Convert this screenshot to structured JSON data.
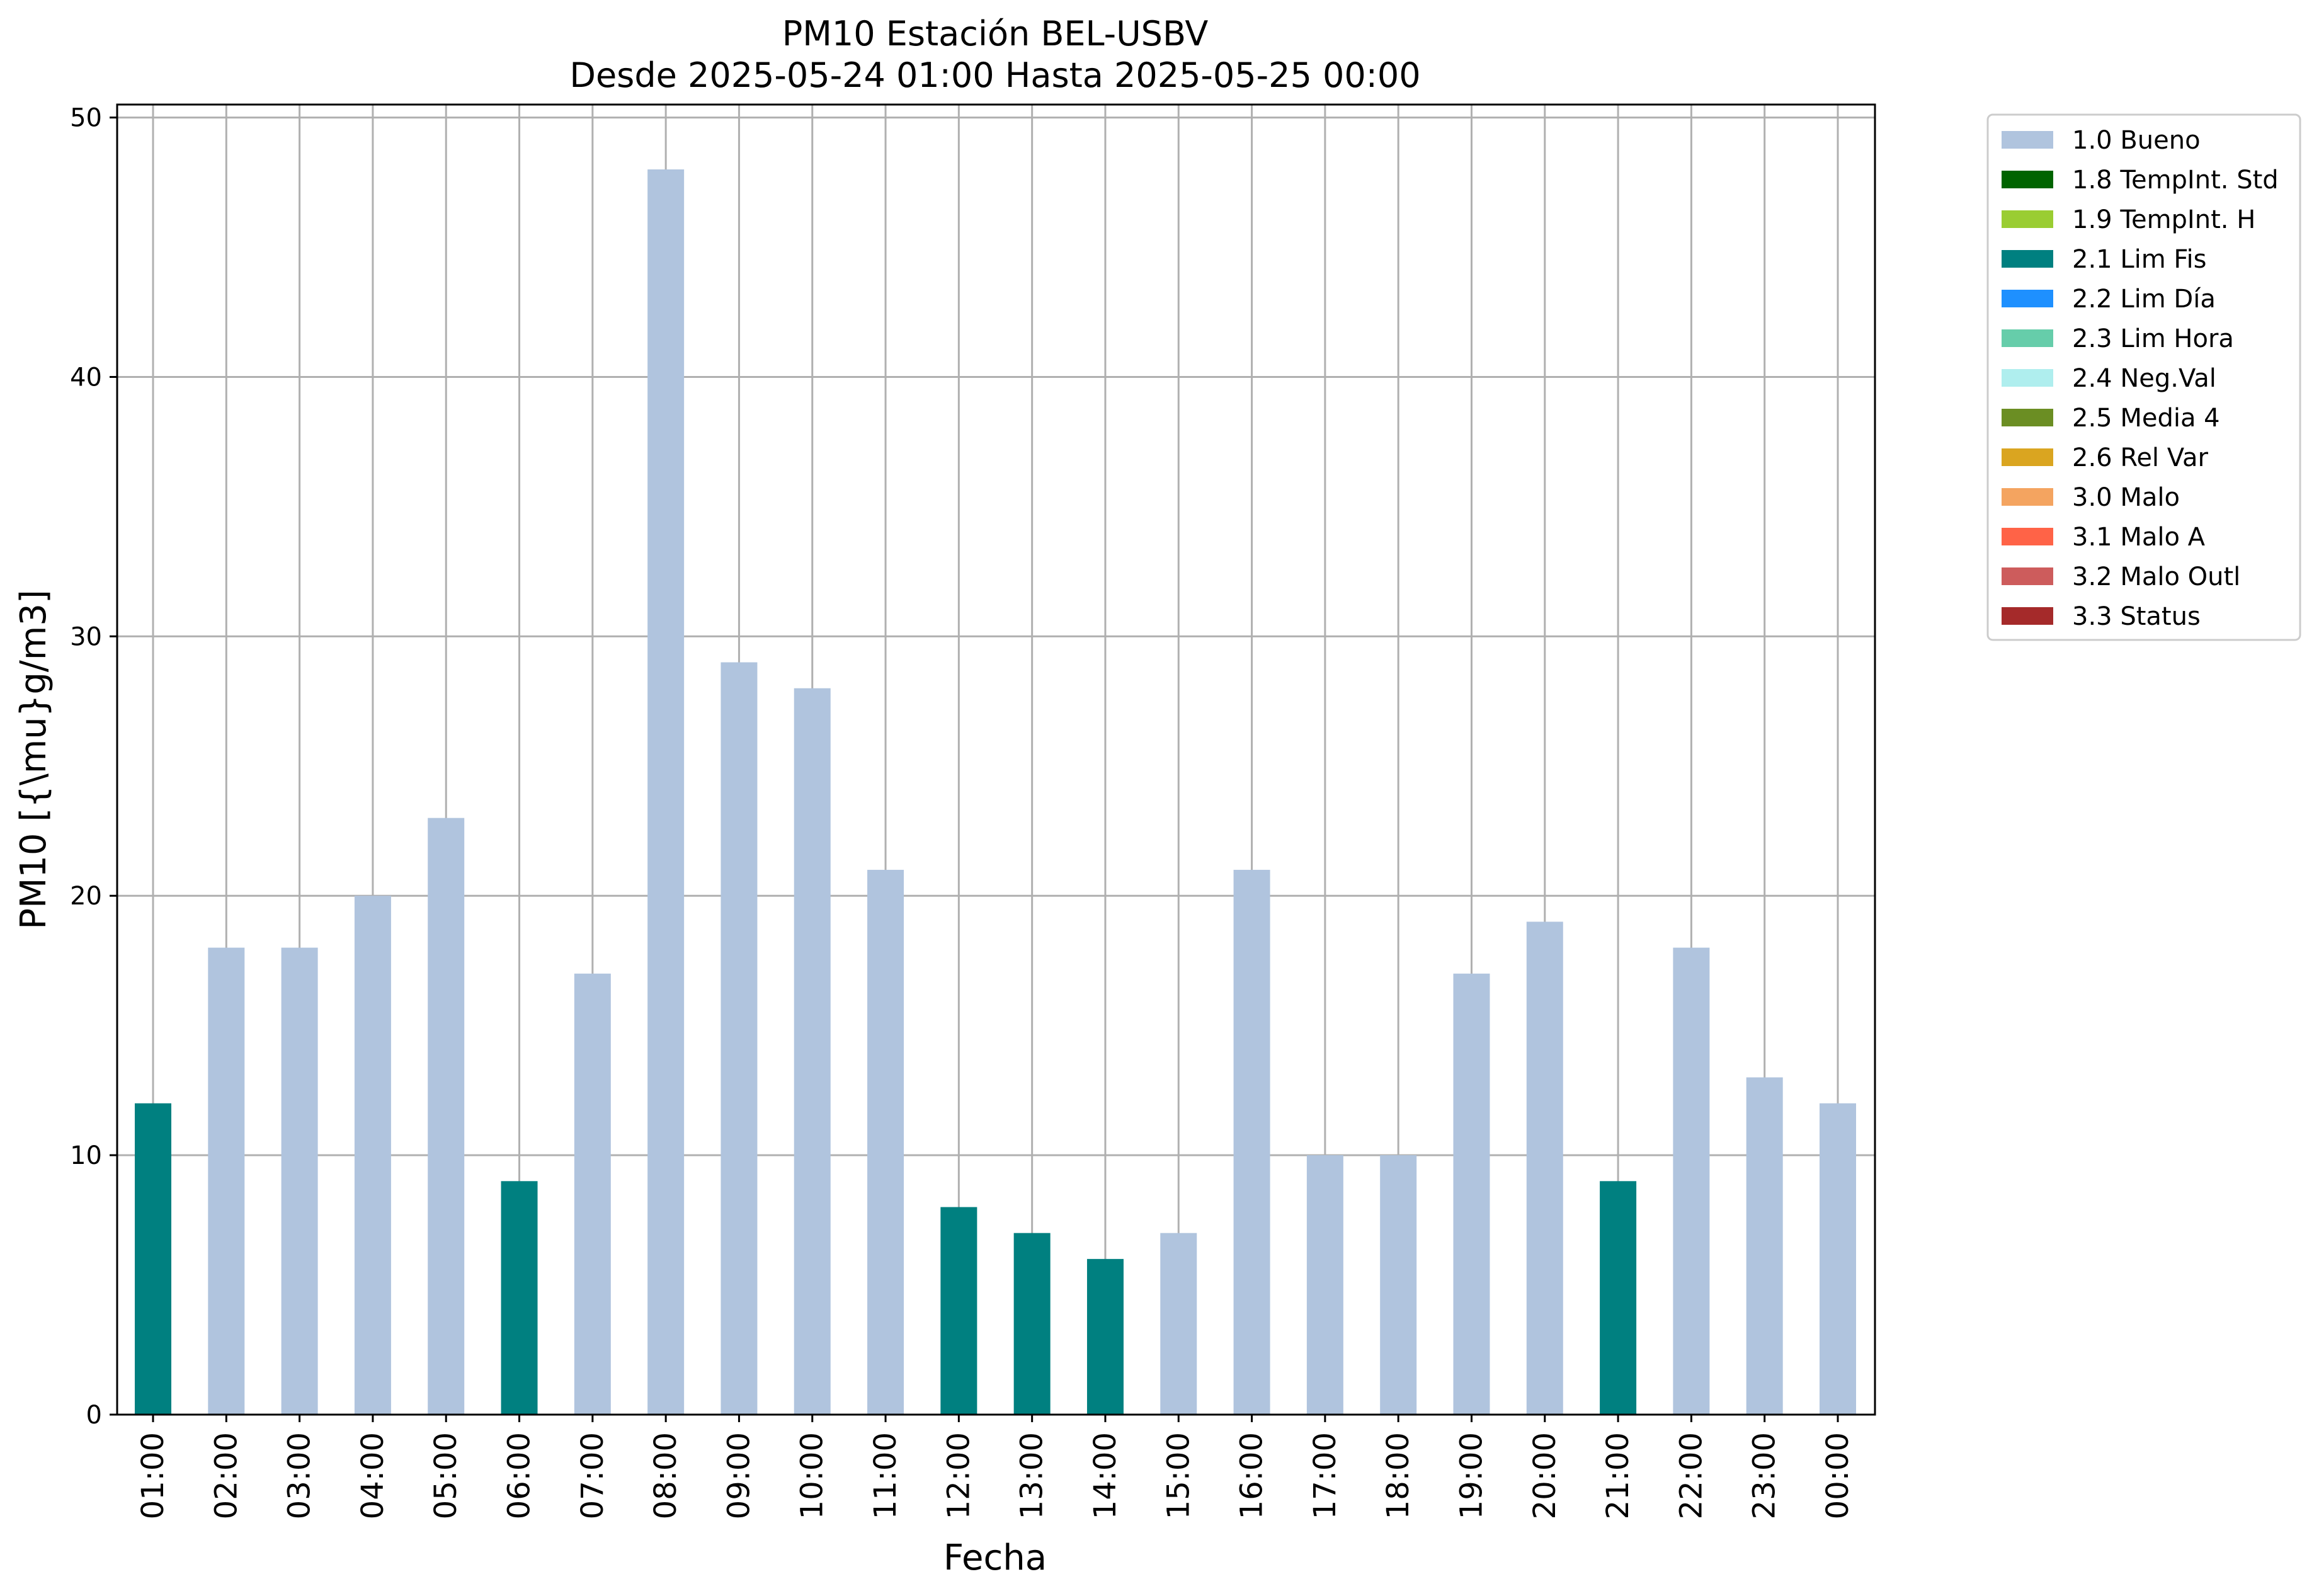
{
  "chart_data": {
    "type": "bar",
    "title": "PM10 Estación BEL-USBV",
    "subtitle": "Desde 2025-05-24 01:00 Hasta 2025-05-25 00:00",
    "xlabel": "Fecha",
    "ylabel": "PM10 [{\\mu}g/m3]",
    "ylim": [
      0,
      50.5
    ],
    "yticks": [
      "0",
      "10",
      "20",
      "30",
      "40",
      "50"
    ],
    "grid": true,
    "legend_position": "outside-right",
    "categories": [
      "01:00",
      "02:00",
      "03:00",
      "04:00",
      "05:00",
      "06:00",
      "07:00",
      "08:00",
      "09:00",
      "10:00",
      "11:00",
      "12:00",
      "13:00",
      "14:00",
      "15:00",
      "16:00",
      "17:00",
      "18:00",
      "19:00",
      "20:00",
      "21:00",
      "22:00",
      "23:00",
      "00:00"
    ],
    "values": [
      12,
      18,
      18,
      20,
      23,
      9,
      17,
      48,
      29,
      28,
      21,
      8,
      7,
      6,
      7,
      21,
      10,
      10,
      17,
      19,
      9,
      18,
      13,
      12
    ],
    "flags": [
      "2.1 Lim Fis",
      "1.0 Bueno",
      "1.0 Bueno",
      "1.0 Bueno",
      "1.0 Bueno",
      "2.1 Lim Fis",
      "1.0 Bueno",
      "1.0 Bueno",
      "1.0 Bueno",
      "1.0 Bueno",
      "1.0 Bueno",
      "2.1 Lim Fis",
      "2.1 Lim Fis",
      "2.1 Lim Fis",
      "1.0 Bueno",
      "1.0 Bueno",
      "1.0 Bueno",
      "1.0 Bueno",
      "1.0 Bueno",
      "1.0 Bueno",
      "2.1 Lim Fis",
      "1.0 Bueno",
      "1.0 Bueno",
      "1.0 Bueno"
    ],
    "legend": [
      {
        "label": "1.0 Bueno",
        "color": "#b0c4de"
      },
      {
        "label": "1.8 TempInt. Std",
        "color": "#006400"
      },
      {
        "label": "1.9 TempInt. H",
        "color": "#9acd32"
      },
      {
        "label": "2.1 Lim Fis",
        "color": "#008080"
      },
      {
        "label": "2.2 Lim Día",
        "color": "#1e90ff"
      },
      {
        "label": "2.3 Lim Hora",
        "color": "#66cdaa"
      },
      {
        "label": "2.4 Neg.Val",
        "color": "#afeeee"
      },
      {
        "label": "2.5 Media 4",
        "color": "#6b8e23"
      },
      {
        "label": "2.6 Rel Var",
        "color": "#daa520"
      },
      {
        "label": "3.0 Malo",
        "color": "#f4a460"
      },
      {
        "label": "3.1 Malo A",
        "color": "#ff6347"
      },
      {
        "label": "3.2 Malo Outl",
        "color": "#cd5c5c"
      },
      {
        "label": "3.3 Status",
        "color": "#a52a2a"
      }
    ]
  }
}
